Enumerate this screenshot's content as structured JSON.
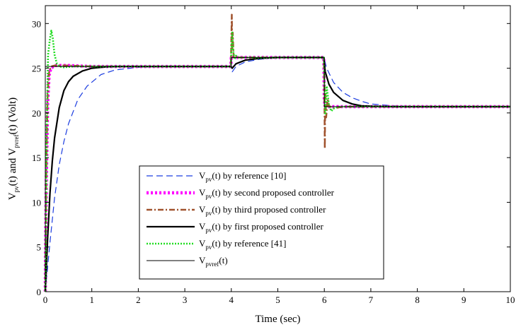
{
  "chart_data": {
    "type": "line",
    "xlabel": "Time (sec)",
    "ylabel": {
      "parts": [
        {
          "t": "V",
          "sub": false
        },
        {
          "t": "pv",
          "sub": true
        },
        {
          "t": "(t)  and  V",
          "sub": false
        },
        {
          "t": "pvref",
          "sub": true
        },
        {
          "t": "(t)  (Volt)",
          "sub": false
        }
      ]
    },
    "xlim": [
      0,
      10
    ],
    "ylim": [
      0,
      32
    ],
    "xticks": [
      "0",
      "1",
      "2",
      "3",
      "4",
      "5",
      "6",
      "7",
      "8",
      "9",
      "10"
    ],
    "yticks": [
      "0",
      "5",
      "10",
      "15",
      "20",
      "25",
      "30"
    ],
    "grid": false,
    "legend_position": "lower-center-right",
    "series": [
      {
        "legend_parts": [
          {
            "t": "V",
            "sub": false
          },
          {
            "t": "pv",
            "sub": true
          },
          {
            "t": "(t) by reference [10]",
            "sub": false
          }
        ],
        "color": "#1c3de0",
        "style": "dashed",
        "x": [
          0,
          0.1,
          0.2,
          0.3,
          0.4,
          0.5,
          0.7,
          0.9,
          1.2,
          1.5,
          2.0,
          2.5,
          3.0,
          3.5,
          3.99,
          4.02,
          4.1,
          4.3,
          4.6,
          5.0,
          5.5,
          5.99,
          6.05,
          6.2,
          6.4,
          6.6,
          6.8,
          7.0,
          7.5,
          8.0,
          9.0,
          10.0
        ],
        "y": [
          0,
          5.5,
          10.5,
          14.2,
          16.8,
          18.8,
          21.5,
          23.0,
          24.3,
          24.8,
          25.1,
          25.2,
          25.2,
          25.2,
          25.2,
          24.6,
          25.2,
          25.7,
          26.0,
          26.2,
          26.2,
          26.2,
          25.0,
          23.4,
          22.3,
          21.7,
          21.3,
          21.0,
          20.8,
          20.7,
          20.7,
          20.7
        ]
      },
      {
        "legend_parts": [
          {
            "t": "V",
            "sub": false
          },
          {
            "t": "pv",
            "sub": true
          },
          {
            "t": "(t) by second proposed controller",
            "sub": false
          }
        ],
        "color": "#ff00ff",
        "style": "thickdot",
        "x": [
          0,
          0.02,
          0.05,
          0.08,
          0.12,
          0.2,
          0.3,
          0.5,
          1.0,
          2.0,
          3.0,
          3.99,
          4.0,
          4.02,
          4.05,
          4.1,
          4.3,
          5.0,
          5.99,
          6.0,
          6.02,
          6.05,
          6.1,
          6.3,
          7.0,
          8.0,
          10.0
        ],
        "y": [
          0,
          12,
          21,
          24.2,
          25.0,
          25.3,
          25.3,
          25.3,
          25.2,
          25.2,
          25.2,
          25.2,
          26.2,
          26.4,
          26.3,
          26.2,
          26.2,
          26.2,
          26.2,
          21.5,
          20.7,
          20.6,
          20.7,
          20.7,
          20.7,
          20.7,
          20.7
        ]
      },
      {
        "legend_parts": [
          {
            "t": "V",
            "sub": false
          },
          {
            "t": "pv",
            "sub": true
          },
          {
            "t": "(t) by third proposed controller",
            "sub": false
          }
        ],
        "color": "#a0522d",
        "style": "dashdot",
        "x": [
          0,
          0.02,
          0.05,
          0.08,
          0.12,
          0.2,
          0.3,
          0.5,
          1.0,
          2.0,
          3.0,
          3.99,
          4.0,
          4.01,
          4.02,
          4.03,
          4.05,
          4.08,
          4.12,
          4.3,
          5.0,
          5.99,
          6.0,
          6.01,
          6.02,
          6.04,
          6.07,
          6.1,
          6.2,
          6.4,
          7.0,
          8.0,
          10.0
        ],
        "y": [
          0,
          13,
          22,
          24.5,
          25.2,
          25.3,
          25.3,
          25.3,
          25.2,
          25.2,
          25.2,
          25.2,
          28.0,
          31.0,
          27.0,
          29.0,
          26.2,
          26.4,
          26.2,
          26.2,
          26.2,
          26.2,
          23.5,
          16.0,
          22.5,
          19.5,
          21.5,
          20.8,
          20.5,
          20.7,
          20.7,
          20.7,
          20.7
        ]
      },
      {
        "legend_parts": [
          {
            "t": "V",
            "sub": false
          },
          {
            "t": "pv",
            "sub": true
          },
          {
            "t": "(t) by first proposed controller",
            "sub": false
          }
        ],
        "color": "#000000",
        "style": "solid-thick",
        "x": [
          0,
          0.05,
          0.1,
          0.15,
          0.2,
          0.3,
          0.4,
          0.5,
          0.6,
          0.8,
          1.0,
          1.3,
          1.6,
          2.0,
          3.0,
          3.99,
          4.02,
          4.1,
          4.3,
          4.6,
          5.0,
          5.99,
          6.02,
          6.1,
          6.2,
          6.4,
          6.6,
          6.8,
          7.0,
          7.5,
          8.0,
          10.0
        ],
        "y": [
          0,
          6.0,
          11.0,
          14.6,
          17.2,
          20.6,
          22.5,
          23.5,
          24.1,
          24.7,
          25.0,
          25.15,
          25.2,
          25.2,
          25.2,
          25.2,
          25.0,
          25.5,
          25.9,
          26.1,
          26.2,
          26.2,
          24.6,
          23.2,
          22.3,
          21.4,
          21.0,
          20.8,
          20.75,
          20.7,
          20.7,
          20.7
        ]
      },
      {
        "legend_parts": [
          {
            "t": "V",
            "sub": false
          },
          {
            "t": "pv",
            "sub": true
          },
          {
            "t": "(t) by reference [41]",
            "sub": false
          }
        ],
        "color": "#22dd22",
        "style": "dotted",
        "x": [
          0,
          0.03,
          0.06,
          0.1,
          0.13,
          0.16,
          0.2,
          0.25,
          0.3,
          0.4,
          0.6,
          1.0,
          2.0,
          3.0,
          3.99,
          4.0,
          4.02,
          4.04,
          4.07,
          4.1,
          4.15,
          4.3,
          5.0,
          5.99,
          6.0,
          6.02,
          6.05,
          6.1,
          6.15,
          6.2,
          6.3,
          6.4,
          7.0,
          10.0
        ],
        "y": [
          0,
          18,
          26.5,
          28.3,
          29.2,
          28.4,
          26.5,
          25.5,
          25.2,
          25.1,
          25.2,
          25.2,
          25.2,
          25.2,
          25.2,
          26.8,
          29.0,
          27.0,
          26.0,
          26.4,
          26.2,
          26.2,
          26.2,
          26.2,
          24.0,
          19.8,
          23.0,
          20.8,
          20.2,
          20.5,
          20.7,
          20.7,
          20.7,
          20.7
        ]
      },
      {
        "legend_parts": [
          {
            "t": "V",
            "sub": false
          },
          {
            "t": "pvref",
            "sub": true
          },
          {
            "t": "(t)",
            "sub": false
          }
        ],
        "color": "#000000",
        "style": "solid-thin",
        "x": [
          0,
          0.01,
          4.0,
          4.0,
          6.0,
          6.0,
          10.0
        ],
        "y": [
          25.2,
          25.2,
          25.2,
          26.2,
          26.2,
          20.7,
          20.7
        ]
      }
    ]
  }
}
